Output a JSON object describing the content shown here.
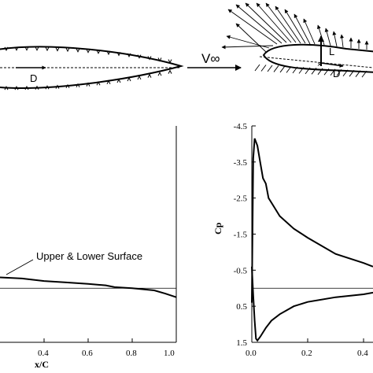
{
  "top_figure": {
    "left_drag_label": "D",
    "freestream_label": "V∞",
    "lift_label": "L",
    "right_drag_label": "D"
  },
  "chart_data": [
    {
      "type": "line",
      "xlabel": "x/C",
      "ylabel": "",
      "xlim": [
        0.2,
        1.0
      ],
      "ylim": [
        1.5,
        -4.5
      ],
      "x_ticks": [
        "0.4",
        "0.6",
        "0.8",
        "1.0"
      ],
      "y_ticks": [],
      "annotations": [
        "Upper & Lower Surface"
      ],
      "series": [
        {
          "name": "",
          "x": [
            0.2,
            0.3,
            0.4,
            0.5,
            0.6,
            0.68,
            0.72,
            0.8,
            0.9,
            0.95,
            1.0
          ],
          "y": [
            -0.3,
            -0.27,
            -0.2,
            -0.16,
            -0.12,
            -0.08,
            -0.03,
            0.0,
            0.06,
            0.15,
            0.25
          ]
        }
      ],
      "reference_line_y": 0.0,
      "grid": false
    },
    {
      "type": "line",
      "xlabel": "",
      "ylabel": "Cp",
      "xlim": [
        0.0,
        0.5
      ],
      "ylim": [
        1.5,
        -4.5
      ],
      "x_ticks": [
        "0.0",
        "0.2",
        "0.4"
      ],
      "y_ticks": [
        "-4.5",
        "-3.5",
        "-2.5",
        "-1.5",
        "-0.5",
        "0.5",
        "1.5"
      ],
      "series": [
        {
          "name": "",
          "x": [
            0.0,
            0.005,
            0.01,
            0.02,
            0.03,
            0.04,
            0.05,
            0.06,
            0.08,
            0.1,
            0.15,
            0.2,
            0.3,
            0.4,
            0.5
          ],
          "y": [
            0.4,
            -3.6,
            -4.15,
            -3.95,
            -3.5,
            -3.05,
            -2.9,
            -2.5,
            -2.25,
            -2.0,
            -1.65,
            -1.4,
            -0.95,
            -0.7,
            -0.6
          ]
        },
        {
          "name": "",
          "x": [
            0.0,
            0.005,
            0.01,
            0.015,
            0.02,
            0.03,
            0.05,
            0.07,
            0.1,
            0.15,
            0.2,
            0.3,
            0.4,
            0.5
          ],
          "y": [
            -0.6,
            0.2,
            0.9,
            1.4,
            1.45,
            1.35,
            1.1,
            0.9,
            0.72,
            0.5,
            0.38,
            0.25,
            0.17,
            0.12
          ]
        }
      ],
      "reference_line_y": 0.0,
      "grid": false
    }
  ]
}
